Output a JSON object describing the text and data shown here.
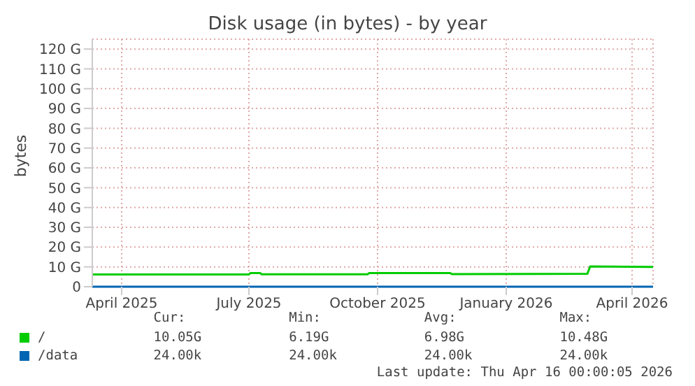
{
  "chart_data": {
    "type": "line",
    "title": "Disk usage (in bytes) - by year",
    "ylabel": "bytes",
    "xlim": [
      "2025-03-11",
      "2026-04-16"
    ],
    "xticks": [
      {
        "value": "2025-04-01",
        "label": "April 2025"
      },
      {
        "value": "2025-07-01",
        "label": "July 2025"
      },
      {
        "value": "2025-10-01",
        "label": "October 2025"
      },
      {
        "value": "2026-01-01",
        "label": "January 2026"
      },
      {
        "value": "2026-04-01",
        "label": "April 2026"
      }
    ],
    "ylim": [
      0,
      125
    ],
    "yticks": [
      0,
      {
        "value": 10,
        "label": "10 G"
      },
      {
        "value": 20,
        "label": "20 G"
      },
      {
        "value": 30,
        "label": "30 G"
      },
      {
        "value": 40,
        "label": "40 G"
      },
      {
        "value": 50,
        "label": "50 G"
      },
      {
        "value": 60,
        "label": "60 G"
      },
      {
        "value": 70,
        "label": "70 G"
      },
      {
        "value": 80,
        "label": "80 G"
      },
      {
        "value": 90,
        "label": "90 G"
      },
      {
        "value": 100,
        "label": "100 G"
      },
      {
        "value": 110,
        "label": "110 G"
      },
      {
        "value": 120,
        "label": "120 G"
      }
    ],
    "grid": true,
    "legend": "bottom",
    "series": [
      {
        "name": "/",
        "color": "#00cc00",
        "x": [
          "2025-03-11",
          "2025-07-01",
          "2025-07-02",
          "2025-07-09",
          "2025-07-10",
          "2025-09-24",
          "2025-09-25",
          "2025-11-22",
          "2025-11-23",
          "2026-02-28",
          "2026-03-02",
          "2026-04-16"
        ],
        "values": [
          6.2,
          6.2,
          6.9,
          6.9,
          6.3,
          6.3,
          6.9,
          6.9,
          6.4,
          6.5,
          10.2,
          10
        ]
      },
      {
        "name": "/data",
        "color": "#0066b3",
        "x": [
          "2025-03-11",
          "2026-04-16"
        ],
        "values": [
          0,
          0
        ]
      }
    ],
    "annotations": [
      "Cur:",
      "Min:",
      "Avg:",
      "Max:",
      "10.05G",
      "6.19G",
      "6.98G",
      "10.48G",
      "24.00k",
      "24.00k",
      "24.00k",
      "24.00k",
      "Last update: Thu Apr 16 00:00:05 2026"
    ]
  }
}
